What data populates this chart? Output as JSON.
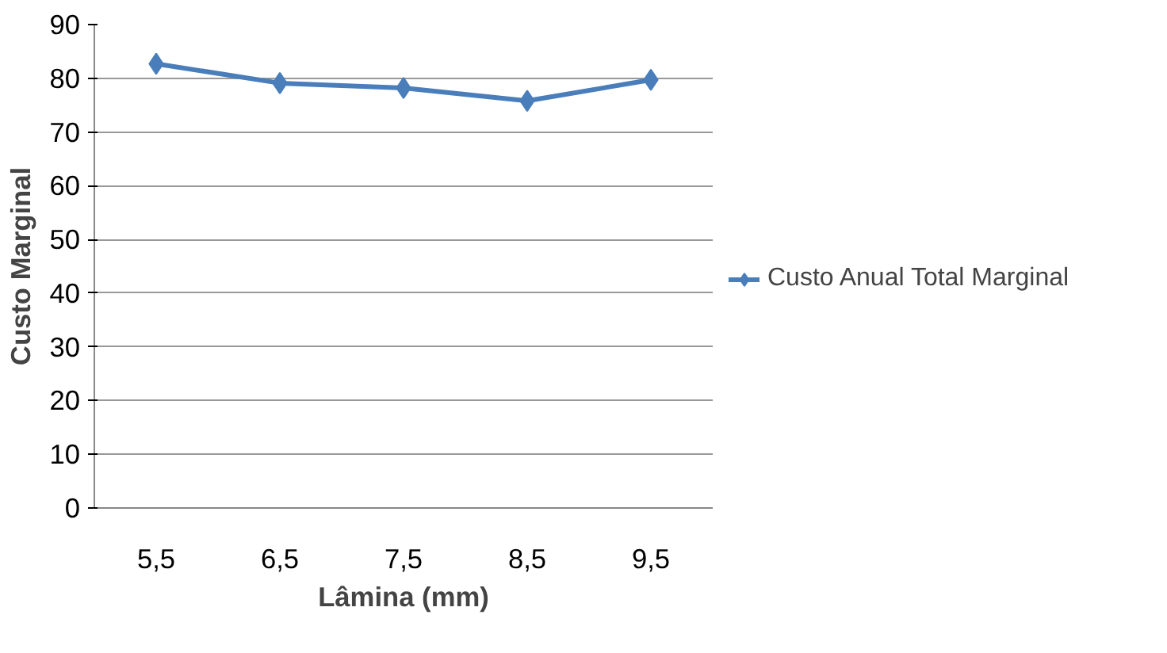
{
  "chart_data": {
    "type": "line",
    "xlabel": "Lâmina (mm)",
    "ylabel": "Custo Marginal",
    "categories": [
      "5,5",
      "6,5",
      "7,5",
      "8,5",
      "9,5"
    ],
    "series": [
      {
        "name": "Custo Anual Total Marginal",
        "color": "#4a7ebb",
        "values": [
          82.7,
          79.1,
          78.2,
          75.8,
          79.7
        ]
      }
    ],
    "ylim": [
      0,
      90
    ],
    "yticks": [
      0,
      10,
      20,
      30,
      40,
      50,
      60,
      70,
      80,
      90
    ],
    "grid": "y",
    "legend": "right",
    "marker": "diamond",
    "line_style": "solid"
  }
}
